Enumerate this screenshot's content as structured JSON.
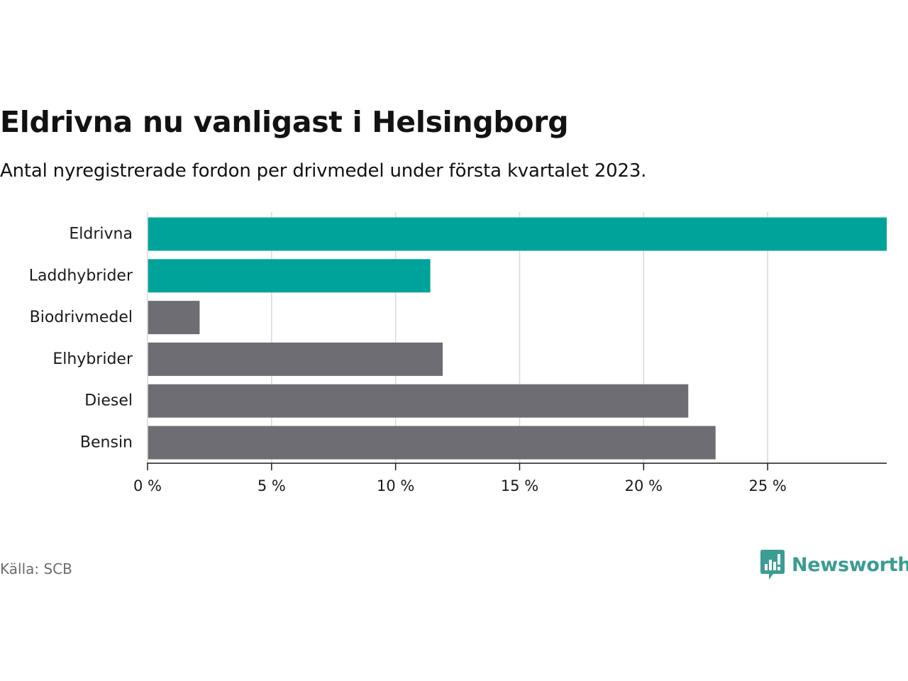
{
  "title": "Eldrivna nu vanligast i Helsingborg",
  "subtitle": "Antal nyregistrerade fordon per drivmedel under första kvartalet 2023.",
  "source": "Källa: SCB",
  "brand": {
    "name": "Newsworthy",
    "icon": "newsworthy-logo-icon",
    "color": "#3b9c93"
  },
  "chart_data": {
    "type": "bar",
    "orientation": "horizontal",
    "categories": [
      "Eldrivna",
      "Laddhybrider",
      "Biodrivmedel",
      "Elhybrider",
      "Diesel",
      "Bensin"
    ],
    "values": [
      29.8,
      11.4,
      2.1,
      11.9,
      21.8,
      22.9
    ],
    "bar_colors": [
      "#00a39a",
      "#00a39a",
      "#6e6d73",
      "#6e6d73",
      "#6e6d73",
      "#6e6d73"
    ],
    "xlim": [
      0,
      29.8
    ],
    "x_ticks": [
      0,
      5,
      10,
      15,
      20,
      25
    ],
    "x_tick_labels": [
      "0 %",
      "5 %",
      "10 %",
      "15 %",
      "20 %",
      "25 %"
    ],
    "grid": "vertical",
    "xlabel": "",
    "ylabel": ""
  }
}
